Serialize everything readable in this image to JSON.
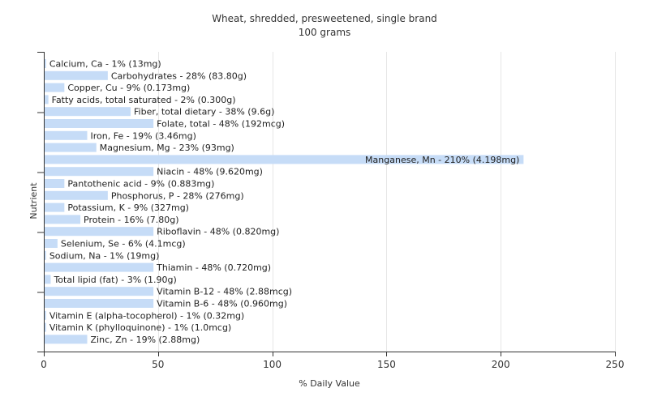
{
  "chart_data": {
    "type": "bar",
    "orientation": "horizontal",
    "title": "Wheat, shredded, presweetened, single brand",
    "subtitle": "100 grams",
    "xlabel": "% Daily Value",
    "ylabel": "Nutrient",
    "xlim": [
      0,
      250
    ],
    "xticks": [
      0,
      50,
      100,
      150,
      200,
      250
    ],
    "grid": true,
    "bar_color": "#c6dcf7",
    "categories": [
      "Calcium, Ca",
      "Carbohydrates",
      "Copper, Cu",
      "Fatty acids, total saturated",
      "Fiber, total dietary",
      "Folate, total",
      "Iron, Fe",
      "Magnesium, Mg",
      "Manganese, Mn",
      "Niacin",
      "Pantothenic acid",
      "Phosphorus, P",
      "Potassium, K",
      "Protein",
      "Riboflavin",
      "Selenium, Se",
      "Sodium, Na",
      "Thiamin",
      "Total lipid (fat)",
      "Vitamin B-12",
      "Vitamin B-6",
      "Vitamin E (alpha-tocopherol)",
      "Vitamin K (phylloquinone)",
      "Zinc, Zn"
    ],
    "values": [
      1,
      28,
      9,
      2,
      38,
      48,
      19,
      23,
      210,
      48,
      9,
      28,
      9,
      16,
      48,
      6,
      1,
      48,
      3,
      48,
      48,
      1,
      1,
      19
    ],
    "labels": [
      "Calcium, Ca - 1% (13mg)",
      "Carbohydrates - 28% (83.80g)",
      "Copper, Cu - 9% (0.173mg)",
      "Fatty acids, total saturated - 2% (0.300g)",
      "Fiber, total dietary - 38% (9.6g)",
      "Folate, total - 48% (192mcg)",
      "Iron, Fe - 19% (3.46mg)",
      "Magnesium, Mg - 23% (93mg)",
      "Manganese, Mn - 210% (4.198mg)",
      "Niacin - 48% (9.620mg)",
      "Pantothenic acid - 9% (0.883mg)",
      "Phosphorus, P - 28% (276mg)",
      "Potassium, K - 9% (327mg)",
      "Protein - 16% (7.80g)",
      "Riboflavin - 48% (0.820mg)",
      "Selenium, Se - 6% (4.1mcg)",
      "Sodium, Na - 1% (19mg)",
      "Thiamin - 48% (0.720mg)",
      "Total lipid (fat) - 3% (1.90g)",
      "Vitamin B-12 - 48% (2.88mcg)",
      "Vitamin B-6 - 48% (0.960mg)",
      "Vitamin E (alpha-tocopherol) - 1% (0.32mg)",
      "Vitamin K (phylloquinone) - 1% (1.0mcg)",
      "Zinc, Zn - 19% (2.88mg)"
    ]
  }
}
